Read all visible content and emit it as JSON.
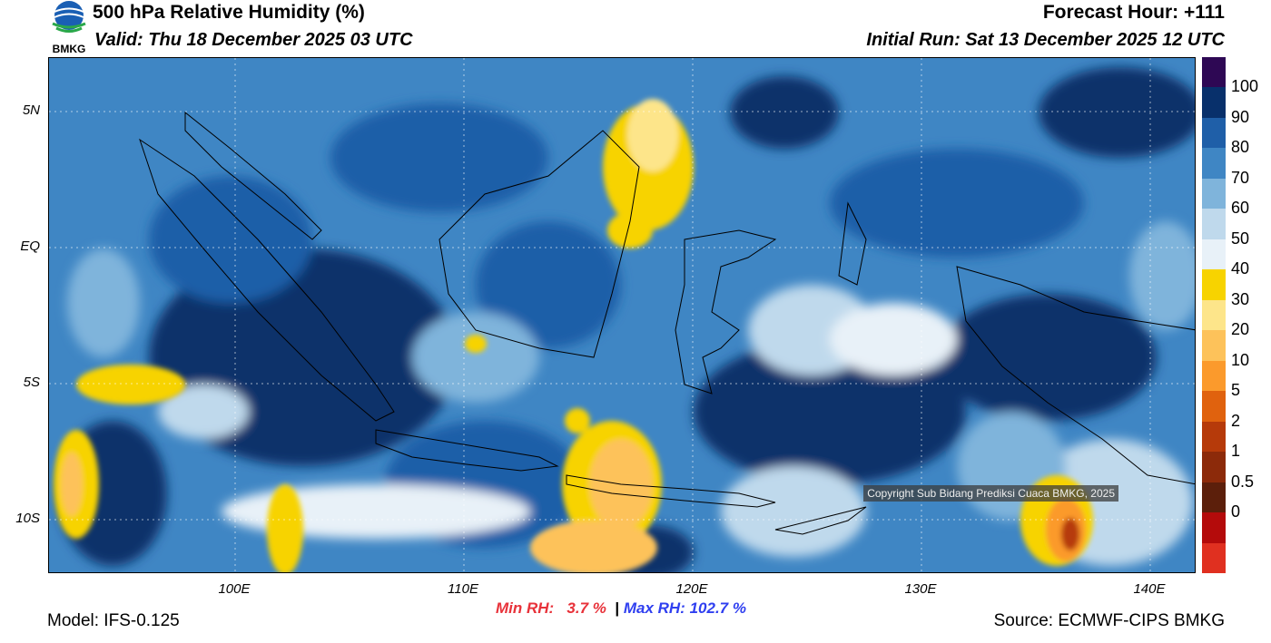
{
  "header": {
    "title": "500 hPa Relative Humidity (%)",
    "valid": "Valid: Thu 18 December 2025 03 UTC",
    "forecast_hour": "Forecast Hour: +111",
    "initial_run": "Initial Run: Sat 13 December 2025 12 UTC",
    "logo_text": "BMKG"
  },
  "map": {
    "lat_labels": [
      "5N",
      "EQ",
      "5S",
      "10S"
    ],
    "lon_labels": [
      "100E",
      "110E",
      "120E",
      "130E",
      "140E"
    ],
    "copyright": "Copyright Sub Bidang Prediksi Cuaca BMKG, 2025"
  },
  "colorbar": {
    "labels": [
      "100",
      "90",
      "80",
      "70",
      "60",
      "50",
      "40",
      "30",
      "20",
      "10",
      "5",
      "2",
      "1",
      "0.5",
      "0"
    ],
    "colors": [
      "#2e0854",
      "#08306b",
      "#1f5fa8",
      "#3f86c4",
      "#7fb4db",
      "#bfd9ec",
      "#e8f1f8",
      "#f7d300",
      "#fde58a",
      "#fdc25a",
      "#fb9a2c",
      "#e0620e",
      "#b63a0a",
      "#8c2a0a",
      "#5c1f0b",
      "#b40b0b",
      "#e03020"
    ]
  },
  "stats": {
    "min_label": "Min RH:",
    "min_value": "3.7 %",
    "separator": "|",
    "max_label": "Max RH:",
    "max_value": "102.7 %",
    "min_color": "#e8323a",
    "max_color": "#2f3ff0"
  },
  "footer": {
    "model": "Model: IFS-0.125",
    "source": "Source: ECMWF-CIPS BMKG"
  }
}
